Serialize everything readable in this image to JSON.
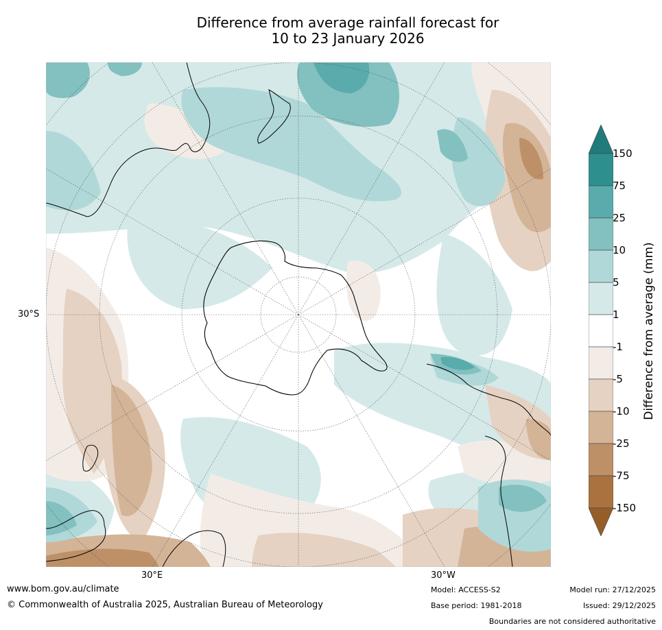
{
  "title": {
    "line1": "Difference from average rainfall forecast for",
    "line2": "10 to 23 January 2026"
  },
  "map": {
    "projection": "South polar stereographic",
    "lat_label": "30°S",
    "lon_labels": [
      "30°E",
      "30°W"
    ]
  },
  "colorbar": {
    "title": "Difference from average (mm)",
    "ticks": [
      "150",
      "75",
      "25",
      "10",
      "5",
      "1",
      "-1",
      "-5",
      "-10",
      "-25",
      "-75",
      "-150"
    ],
    "colors": [
      "#2e8f8f",
      "#5aabab",
      "#83c0c0",
      "#b0d8d8",
      "#d5e9e9",
      "#ffffff",
      "#f3ece6",
      "#e5d2c2",
      "#d4b497",
      "#be9068",
      "#a9723f"
    ],
    "over_color": "#217b7b",
    "under_color": "#955e28"
  },
  "footer": {
    "url": "www.bom.gov.au/climate",
    "copyright": "© Commonwealth of Australia 2025, Australian Bureau of Meteorology",
    "model": "Model: ACCESS-S2",
    "base_period": "Base period: 1981-2018",
    "model_run": "Model run: 27/12/2025",
    "issued": "Issued: 29/12/2025",
    "disclaimer": "Boundaries are not considered authoritative"
  }
}
